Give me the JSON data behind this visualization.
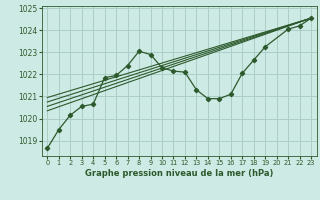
{
  "title": "Graphe pression niveau de la mer (hPa)",
  "bg_color": "#ceeae4",
  "grid_color": "#aacfc8",
  "line_color": "#2d5a2d",
  "xlim": [
    -0.5,
    23.5
  ],
  "ylim": [
    1018.3,
    1025.1
  ],
  "xticks": [
    0,
    1,
    2,
    3,
    4,
    5,
    6,
    7,
    8,
    9,
    10,
    11,
    12,
    13,
    14,
    15,
    16,
    17,
    18,
    19,
    20,
    21,
    22,
    23
  ],
  "yticks": [
    1019,
    1020,
    1021,
    1022,
    1023,
    1024,
    1025
  ],
  "series": [
    [
      0,
      1018.65
    ],
    [
      1,
      1019.5
    ],
    [
      2,
      1020.15
    ],
    [
      3,
      1020.55
    ],
    [
      4,
      1020.65
    ],
    [
      5,
      1021.85
    ],
    [
      6,
      1021.95
    ],
    [
      7,
      1022.4
    ],
    [
      8,
      1023.05
    ],
    [
      9,
      1022.9
    ],
    [
      10,
      1022.3
    ],
    [
      11,
      1022.15
    ],
    [
      12,
      1022.1
    ],
    [
      13,
      1021.3
    ],
    [
      14,
      1020.9
    ],
    [
      15,
      1020.9
    ],
    [
      16,
      1021.1
    ],
    [
      17,
      1022.05
    ],
    [
      18,
      1022.65
    ],
    [
      19,
      1023.25
    ],
    [
      21,
      1024.05
    ],
    [
      22,
      1024.2
    ],
    [
      23,
      1024.55
    ]
  ],
  "linear_series": [
    [
      [
        0,
        1020.35
      ],
      [
        23,
        1024.55
      ]
    ],
    [
      [
        0,
        1020.55
      ],
      [
        23,
        1024.55
      ]
    ],
    [
      [
        0,
        1020.75
      ],
      [
        23,
        1024.55
      ]
    ],
    [
      [
        0,
        1020.95
      ],
      [
        23,
        1024.55
      ]
    ]
  ]
}
